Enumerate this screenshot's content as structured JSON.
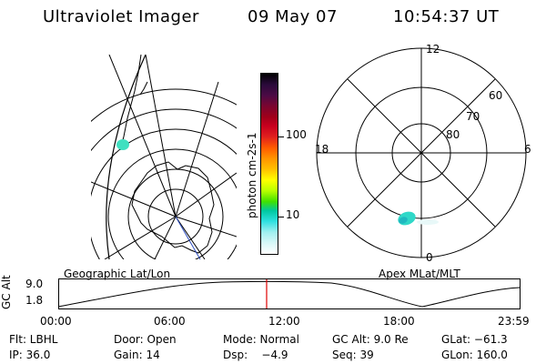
{
  "header": {
    "title": "Ultraviolet Imager",
    "date": "09 May 07",
    "time": "10:54:37 UT"
  },
  "colorbar": {
    "label": "photon cm-2s-1",
    "ticks": [
      "100",
      "10"
    ],
    "colors": [
      "#000000",
      "#2a0a3a",
      "#4b0a45",
      "#7a0530",
      "#a0001a",
      "#c8001e",
      "#e0201e",
      "#ff5a00",
      "#ff9400",
      "#ffc000",
      "#ffff00",
      "#b8ff00",
      "#40e000",
      "#00c8a0",
      "#30e0e0",
      "#a0f0f0",
      "#d8f8f8",
      "#ffffff"
    ]
  },
  "polar": {
    "mlt_labels": {
      "top": "12",
      "left": "18",
      "right": "6",
      "bottom": "0"
    },
    "lat_labels": [
      "60",
      "70",
      "80"
    ]
  },
  "timeline": {
    "left_label": "Geographic Lat/Lon",
    "right_label": "Apex MLat/MLT",
    "yaxis_label": "GC Alt",
    "y_ticks": [
      "9.0",
      "1.8"
    ],
    "x_ticks": [
      "00:00",
      "06:00",
      "12:00",
      "18:00",
      "23:59"
    ],
    "marker_color": "#e00000"
  },
  "info": {
    "r1": {
      "filter": "Flt: LBHL",
      "door": "Door: Open",
      "mode": "Mode: Normal",
      "gc_alt": "GC Alt: 9.0 Re",
      "glat": "GLat: −61.3"
    },
    "r2": {
      "ip": "IP: 36.0",
      "gain": "Gain: 14",
      "dsp": "Dsp:    −4.9",
      "seq": "Seq: 39",
      "glon": "GLon: 160.0"
    }
  }
}
